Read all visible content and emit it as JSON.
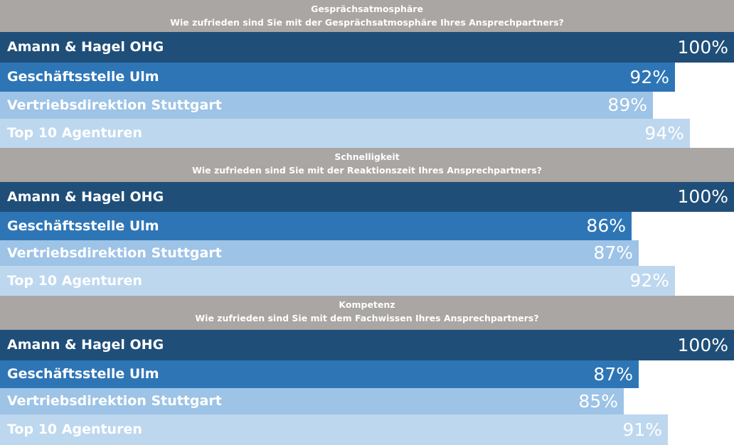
{
  "chart_data": {
    "type": "bar",
    "orientation": "horizontal",
    "xlim": [
      0,
      100
    ],
    "legend": "none",
    "grid": false,
    "colors": [
      "#1f4e79",
      "#2e75b6",
      "#9dc3e6",
      "#bdd7ee"
    ],
    "groups": [
      {
        "title": "Gesprächsatmosphäre",
        "subtitle": "Wie zufrieden sind Sie mit der Gesprächsatmosphäre Ihres Ansprechpartners?",
        "categories": [
          "Amann & Hagel OHG",
          "Geschäftsstelle Ulm",
          "Vertriebsdirektion Stuttgart",
          "Top 10 Agenturen"
        ],
        "values": [
          100,
          92,
          89,
          94
        ],
        "value_labels": [
          "100%",
          "92%",
          "89%",
          "94%"
        ]
      },
      {
        "title": "Schnelligkeit",
        "subtitle": "Wie zufrieden sind Sie mit der Reaktionszeit Ihres Ansprechpartners?",
        "categories": [
          "Amann & Hagel OHG",
          "Geschäftsstelle Ulm",
          "Vertriebsdirektion Stuttgart",
          "Top 10 Agenturen"
        ],
        "values": [
          100,
          86,
          87,
          92
        ],
        "value_labels": [
          "100%",
          "86%",
          "87%",
          "92%"
        ]
      },
      {
        "title": "Kompetenz",
        "subtitle": "Wie zufrieden sind Sie mit dem Fachwissen Ihres Ansprechpartners?",
        "categories": [
          "Amann & Hagel OHG",
          "Geschäftsstelle Ulm",
          "Vertriebsdirektion Stuttgart",
          "Top 10 Agenturen"
        ],
        "values": [
          100,
          87,
          85,
          91
        ],
        "value_labels": [
          "100%",
          "87%",
          "85%",
          "91%"
        ]
      }
    ]
  }
}
